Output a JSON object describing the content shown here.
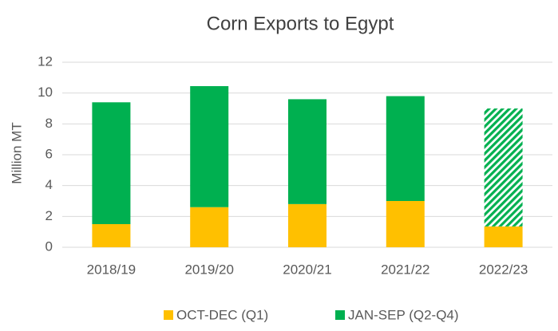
{
  "chart_data": {
    "type": "stacked_bar",
    "title": "Corn Exports to Egypt",
    "y_label": "Million MT",
    "categories": [
      "2018/19",
      "2019/20",
      "2020/21",
      "2021/22",
      "2022/23"
    ],
    "series": [
      {
        "name": "OCT-DEC (Q1)",
        "color": "#ffc000",
        "values": [
          1.5,
          2.6,
          2.8,
          3.0,
          1.35
        ]
      },
      {
        "name": "JAN-SEP (Q2-Q4)",
        "color": "#00b050",
        "values": [
          7.9,
          7.85,
          6.8,
          6.8,
          7.65
        ],
        "hatched": [
          false,
          false,
          false,
          false,
          true
        ]
      }
    ],
    "ylim": [
      0,
      12
    ],
    "yticks": [
      0,
      2,
      4,
      6,
      8,
      10,
      12
    ],
    "grid": true,
    "legend": "bottom"
  }
}
